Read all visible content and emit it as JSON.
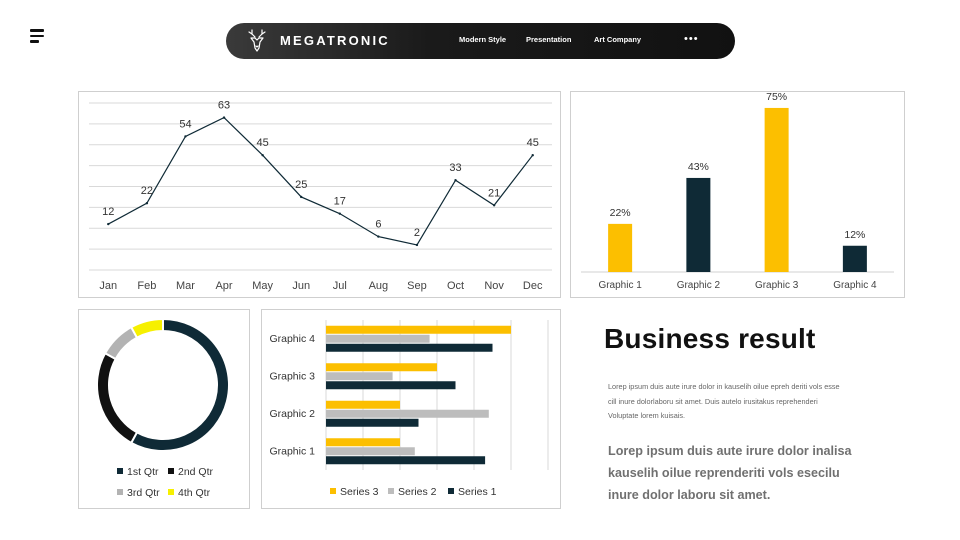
{
  "header": {
    "brand": "MEGATRONIC",
    "links": [
      "Modern Style",
      "Presentation",
      "Art Company"
    ],
    "more": "•••"
  },
  "text": {
    "headline": "Business result",
    "body_small": "Lorep  ipsum duis aute irure dolor in kauselih oilue epreh deriti vols esse cill inure dolorlaboru sit amet. Duis autelo irusitakus reprehenderi Voluptate lorem kuisais.",
    "body_large": "Lorep  ipsum duis aute irure dolor inalisa kauselih oilue reprenderiti vols esecilu inure dolor laboru sit amet."
  },
  "colors": {
    "dark": "#0f2a36",
    "yellow": "#fcbf00",
    "gray": "#bdbdbd",
    "black": "#111111",
    "bright_yellow": "#f6f000"
  },
  "chart_data": [
    {
      "type": "line",
      "categories": [
        "Jan",
        "Feb",
        "Mar",
        "Apr",
        "May",
        "Jun",
        "Jul",
        "Aug",
        "Sep",
        "Oct",
        "Nov",
        "Dec"
      ],
      "values": [
        12,
        22,
        54,
        63,
        45,
        25,
        17,
        6,
        2,
        33,
        21,
        45
      ],
      "ylim": [
        -10,
        70
      ],
      "grid": true
    },
    {
      "type": "bar",
      "categories": [
        "Graphic 1",
        "Graphic 2",
        "Graphic 3",
        "Graphic 4"
      ],
      "values": [
        22,
        43,
        75,
        12
      ],
      "value_labels": [
        "22%",
        "43%",
        "75%",
        "12%"
      ],
      "colors": [
        "yellow",
        "dark",
        "yellow",
        "dark"
      ],
      "ylim": [
        0,
        80
      ]
    },
    {
      "type": "pie",
      "style": "doughnut",
      "categories": [
        "1st Qtr",
        "2nd Qtr",
        "3rd Qtr",
        "4th Qtr"
      ],
      "values": [
        58,
        25,
        9,
        8
      ],
      "colors": [
        "#0f2a36",
        "#111111",
        "#b3b3b3",
        "#f6f000"
      ]
    },
    {
      "type": "bar",
      "orientation": "horizontal",
      "categories": [
        "Graphic 1",
        "Graphic 2",
        "Graphic 3",
        "Graphic 4"
      ],
      "series": [
        {
          "name": "Series 3",
          "values": [
            2.0,
            2.0,
            3.0,
            5.0
          ],
          "color": "#fcbf00"
        },
        {
          "name": "Series 2",
          "values": [
            2.4,
            4.4,
            1.8,
            2.8
          ],
          "color": "#bdbdbd"
        },
        {
          "name": "Series 1",
          "values": [
            4.3,
            2.5,
            3.5,
            4.5
          ],
          "color": "#0f2a36"
        }
      ],
      "xlim": [
        0,
        6
      ],
      "grid": true,
      "legend": "bottom"
    }
  ]
}
